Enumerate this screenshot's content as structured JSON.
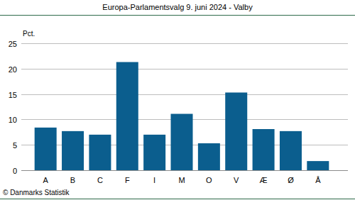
{
  "chart_data": {
    "type": "bar",
    "title": "Europa-Parlamentsvalg 9. juni 2024 - Valby",
    "ylabel": "Pct.",
    "annotations": [
      "© Danmarks Statistik"
    ],
    "categories": [
      "A",
      "B",
      "C",
      "F",
      "I",
      "M",
      "O",
      "V",
      "Æ",
      "Ø",
      "Å"
    ],
    "values": [
      8.4,
      7.7,
      7.0,
      21.3,
      7.0,
      11.1,
      5.3,
      15.3,
      8.1,
      7.7,
      1.8
    ],
    "color": "#0b5e8e",
    "ylim": [
      0,
      25
    ],
    "yticks": [
      0,
      5,
      10,
      15,
      20,
      25
    ],
    "grid": true
  }
}
